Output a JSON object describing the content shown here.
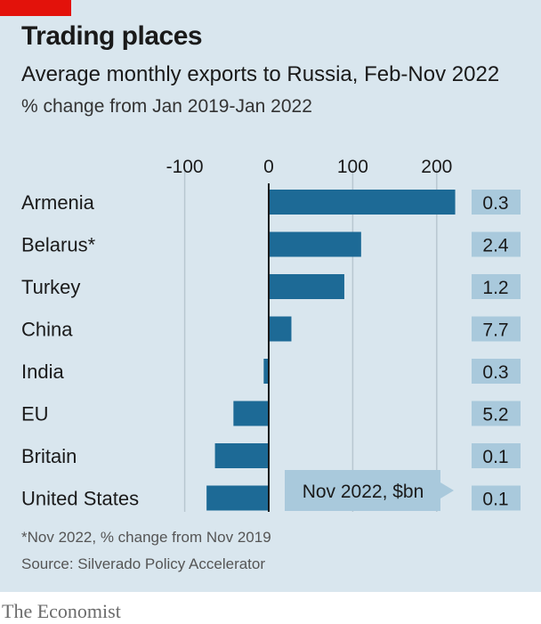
{
  "header": {
    "title": "Trading places",
    "subtitle": "Average monthly exports to Russia, Feb-Nov 2022",
    "unit_label": "% change from Jan 2019-Jan 2022"
  },
  "footer": {
    "footnote": "*Nov 2022, % change from Nov 2019",
    "source": "Source: Silverado Policy Accelerator",
    "brand": "The Economist"
  },
  "colors": {
    "background": "#d9e6ee",
    "bar": "#1d6a96",
    "value_box": "#a9c9dc",
    "accent_red": "#e3120b"
  },
  "chart_data": {
    "type": "bar",
    "orientation": "horizontal",
    "title": "Trading places",
    "subtitle": "Average monthly exports to Russia, Feb-Nov 2022",
    "xlabel": "% change from Jan 2019-Jan 2022",
    "categories": [
      "Armenia",
      "Belarus*",
      "Turkey",
      "China",
      "India",
      "EU",
      "Britain",
      "United States"
    ],
    "values": [
      222,
      110,
      90,
      27,
      -6,
      -42,
      -64,
      -74
    ],
    "xlim": [
      -100,
      235
    ],
    "xticks": [
      -100,
      0,
      100,
      200
    ],
    "xtick_labels": [
      "-100",
      "0",
      "100",
      "200"
    ],
    "grid": true,
    "secondary_column": {
      "label": "Nov 2022, $bn",
      "values": [
        "0.3",
        "2.4",
        "1.2",
        "7.7",
        "0.3",
        "5.2",
        "0.1",
        "0.1"
      ]
    }
  }
}
